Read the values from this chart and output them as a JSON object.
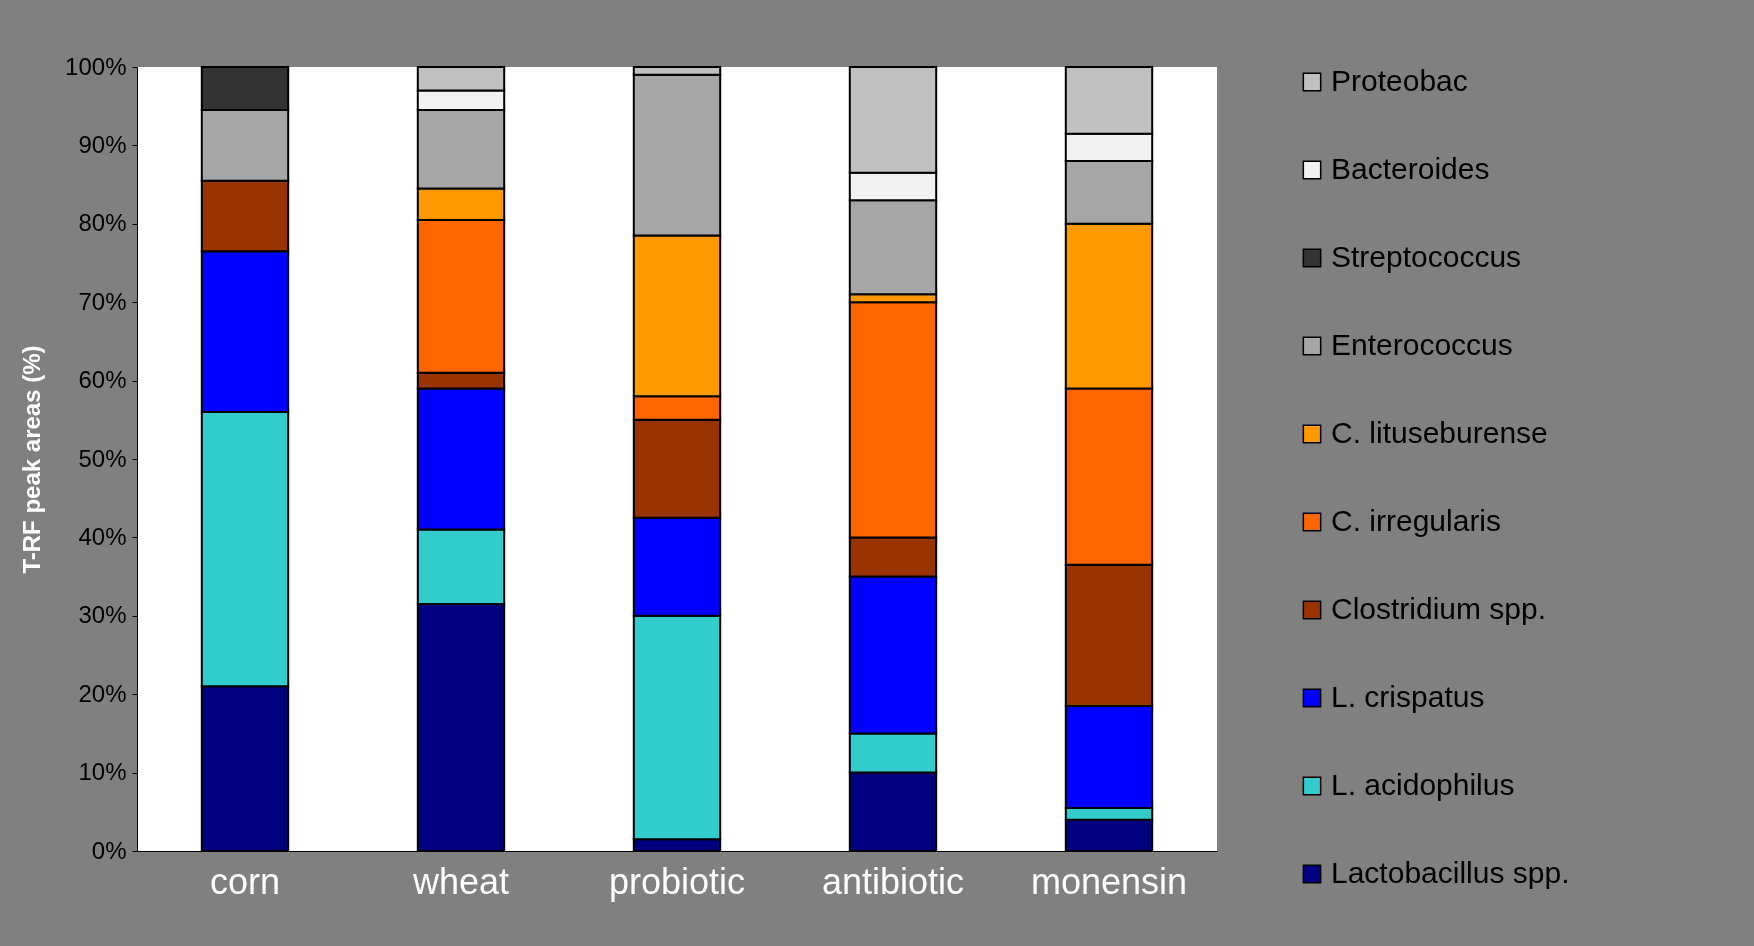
{
  "chart_data": {
    "type": "bar",
    "stacked": true,
    "ylabel": "T-RF peak areas (%)",
    "categories": [
      "corn",
      "wheat",
      "probiotic",
      "antibiotic",
      "monensin"
    ],
    "series": [
      {
        "name": "Lactobacillus  spp.",
        "color": "#000080",
        "values": [
          21,
          31.5,
          1.5,
          10,
          4
        ]
      },
      {
        "name": "L. acidophilus",
        "color": "#33cccc",
        "values": [
          35,
          9.5,
          28.5,
          5,
          1.5
        ]
      },
      {
        "name": "L. crispatus",
        "color": "#0000ff",
        "values": [
          20.5,
          18,
          12.5,
          20,
          13
        ]
      },
      {
        "name": "Clostridium spp.",
        "color": "#993300",
        "values": [
          9,
          2,
          12.5,
          5,
          18
        ]
      },
      {
        "name": "C. irregularis",
        "color": "#ff6600",
        "values": [
          null,
          19.5,
          3,
          30,
          22.5
        ]
      },
      {
        "name": "C. lituseburense",
        "color": "#ff9900",
        "values": [
          null,
          4,
          20.5,
          1,
          21
        ]
      },
      {
        "name": "Enterococcus",
        "color": "#a6a6a6",
        "values": [
          9,
          10,
          20.5,
          12,
          8
        ]
      },
      {
        "name": "Streptococcus",
        "color": "#333333",
        "values": [
          5.5,
          null,
          null,
          null,
          null
        ]
      },
      {
        "name": "Bacteroides",
        "color": "#f2f2f2",
        "values": [
          null,
          2.5,
          null,
          3.5,
          3.5
        ]
      },
      {
        "name": "Proteobac",
        "color": "#c0c0c0",
        "values": [
          null,
          3,
          1,
          13.5,
          8.5
        ]
      }
    ],
    "ylim": [
      0,
      100
    ],
    "yticks": [
      {
        "value": 0,
        "label": "0%"
      },
      {
        "value": 10,
        "label": "10%"
      },
      {
        "value": 20,
        "label": "20%"
      },
      {
        "value": 30,
        "label": "30%"
      },
      {
        "value": 40,
        "label": "40%"
      },
      {
        "value": 50,
        "label": "50%"
      },
      {
        "value": 60,
        "label": "60%"
      },
      {
        "value": 70,
        "label": "70%"
      },
      {
        "value": 80,
        "label": "80%"
      },
      {
        "value": 90,
        "label": "90%"
      },
      {
        "value": 100,
        "label": "100%"
      }
    ],
    "grid": false,
    "legend": "right"
  }
}
